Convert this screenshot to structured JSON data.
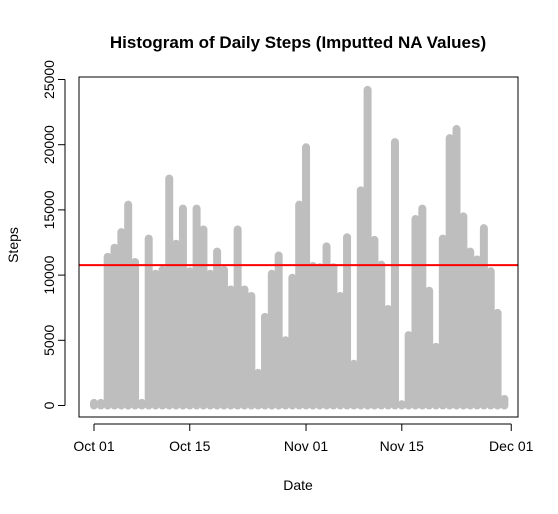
{
  "chart_data": {
    "type": "bar",
    "title": "Histogram of Daily Steps (Imputted NA Values)",
    "xlabel": "Date",
    "ylabel": "Steps",
    "ylim": [
      0,
      25000
    ],
    "grid": false,
    "legend": "none",
    "x_ticks": [
      {
        "label": "Oct 01",
        "day": 0
      },
      {
        "label": "Oct 15",
        "day": 14
      },
      {
        "label": "Nov 01",
        "day": 31
      },
      {
        "label": "Nov 15",
        "day": 45
      },
      {
        "label": "Dec 01",
        "day": 61
      }
    ],
    "y_ticks": [
      "0",
      "5000",
      "10000",
      "15000",
      "20000",
      "25000"
    ],
    "y_tick_values": [
      0,
      5000,
      10000,
      15000,
      20000,
      25000
    ],
    "categories": [
      "2012-10-01",
      "2012-10-02",
      "2012-10-03",
      "2012-10-04",
      "2012-10-05",
      "2012-10-06",
      "2012-10-07",
      "2012-10-08",
      "2012-10-09",
      "2012-10-10",
      "2012-10-11",
      "2012-10-12",
      "2012-10-13",
      "2012-10-14",
      "2012-10-15",
      "2012-10-16",
      "2012-10-17",
      "2012-10-18",
      "2012-10-19",
      "2012-10-20",
      "2012-10-21",
      "2012-10-22",
      "2012-10-23",
      "2012-10-24",
      "2012-10-25",
      "2012-10-26",
      "2012-10-27",
      "2012-10-28",
      "2012-10-29",
      "2012-10-30",
      "2012-10-31",
      "2012-11-01",
      "2012-11-02",
      "2012-11-03",
      "2012-11-04",
      "2012-11-05",
      "2012-11-06",
      "2012-11-07",
      "2012-11-08",
      "2012-11-09",
      "2012-11-10",
      "2012-11-11",
      "2012-11-12",
      "2012-11-13",
      "2012-11-14",
      "2012-11-15",
      "2012-11-16",
      "2012-11-17",
      "2012-11-18",
      "2012-11-19",
      "2012-11-20",
      "2012-11-21",
      "2012-11-22",
      "2012-11-23",
      "2012-11-24",
      "2012-11-25",
      "2012-11-26",
      "2012-11-27",
      "2012-11-28",
      "2012-11-29",
      "2012-11-30"
    ],
    "values": [
      200,
      200,
      11400,
      12100,
      13300,
      15400,
      11000,
      200,
      12800,
      10100,
      10400,
      17400,
      12400,
      15100,
      10300,
      15100,
      13500,
      10100,
      11800,
      10400,
      8900,
      13500,
      8900,
      8400,
      2500,
      6800,
      10100,
      11500,
      5000,
      9800,
      15400,
      19800,
      10700,
      10600,
      12200,
      10600,
      8400,
      12900,
      3200,
      16500,
      24200,
      12700,
      10800,
      7400,
      20200,
      100,
      5400,
      14300,
      15100,
      8800,
      4500,
      12800,
      20500,
      21200,
      14500,
      11800,
      11200,
      13600,
      10300,
      7100,
      500
    ],
    "reference_line": {
      "value": 10766,
      "color": "#ff0000"
    },
    "bar_color": "#bebebe"
  }
}
